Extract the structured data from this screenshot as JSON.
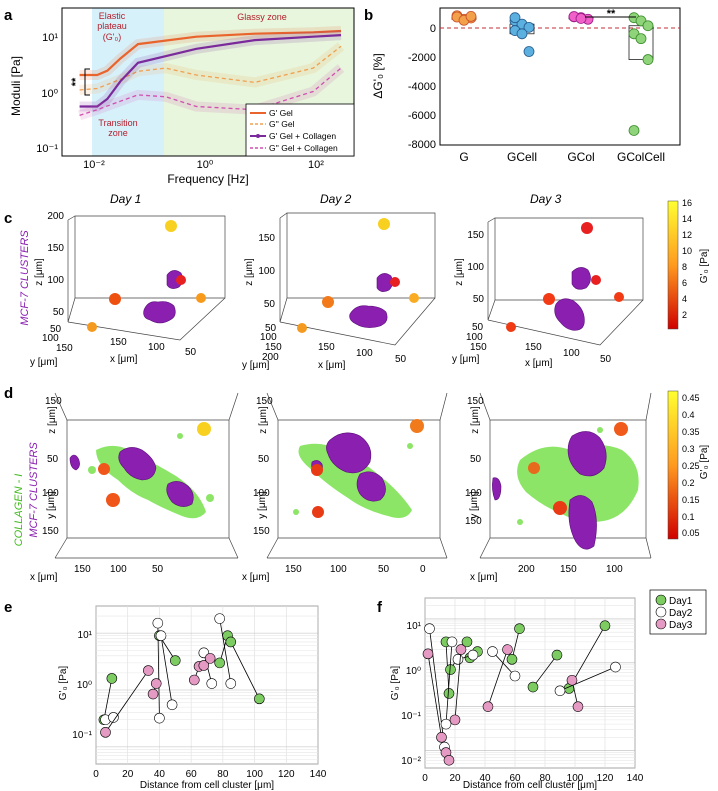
{
  "colors": {
    "g_gel": "#e8642c",
    "g_gel_col": "#7a2a9a",
    "g2_gel": "#f0a050",
    "g2_gel_col": "#d04fb0",
    "collagen": "#66dd33",
    "cluster": "#8a1fb0",
    "d1": "#7ccc62",
    "d2": "#ffffff",
    "d3": "#e49ac3"
  },
  "panel_labels": {
    "a": "a",
    "b": "b",
    "c": "c",
    "d": "d",
    "e": "e",
    "f": "f"
  },
  "panel_a": {
    "ylabel": "Moduli [Pa]",
    "xlabel": "Frequency [Hz]",
    "yticks": [
      "10¹",
      "10⁰",
      "10⁻¹"
    ],
    "xticks": [
      "10⁻²",
      "10⁰",
      "10²"
    ],
    "zone_elastic": "Elastic",
    "zone_plateau": "plateau",
    "zone_g0": "(G'₀)",
    "zone_glassy": "Glassy zone",
    "zone_transition": "Transition",
    "zone_transition2": "zone",
    "sig": "**",
    "legend": [
      "G' Gel",
      "G'' Gel",
      "G'  Gel + Collagen",
      "G'' Gel + Collagen"
    ]
  },
  "panel_b": {
    "ylabel": "ΔG'₀ [%]",
    "yticks": [
      "0",
      "-2000",
      "-4000",
      "-6000",
      "-8000"
    ],
    "categories": [
      "G",
      "GCell",
      "GCol",
      "GColCell"
    ],
    "sig": "**"
  },
  "panel_c": {
    "side_label": "MCF-7 CLUSTERS",
    "days": [
      "Day 1",
      "Day 2",
      "Day 3"
    ],
    "zlabel": "z [μm]",
    "ylabel": "y [μm]",
    "xlabel": "x [μm]",
    "cb_label": "G'₀ [Pa]",
    "cb_ticks": [
      "16",
      "14",
      "12",
      "10",
      "8",
      "6",
      "4",
      "2"
    ],
    "zt1": [
      "200",
      "150",
      "100",
      "50"
    ],
    "zt2": [
      "150",
      "100",
      "50"
    ],
    "zt3": [
      "150",
      "100",
      "50"
    ],
    "yt1": [
      "50",
      "100",
      "150"
    ],
    "xt1": [
      "150",
      "100",
      "50"
    ],
    "yt2": [
      "50",
      "100",
      "150",
      "200"
    ],
    "xt2": [
      "150",
      "100",
      "50"
    ],
    "yt3": [
      "50",
      "100",
      "150"
    ],
    "xt3": [
      "150",
      "100",
      "50"
    ]
  },
  "panel_d": {
    "side_label1": "COLLAGEN - I",
    "side_label2": "MCF-7 CLUSTERS",
    "zlabel": "z [μm]",
    "ylabel": "y [μm]",
    "xlabel": "x [μm]",
    "cb_label": "G'₀ [Pa]",
    "cb_ticks": [
      "0.45",
      "0.4",
      "0.35",
      "0.3",
      "0.25",
      "0.2",
      "0.15",
      "0.1",
      "0.05"
    ],
    "ytk": [
      "50",
      "100",
      "150"
    ],
    "xt1": [
      "150",
      "100",
      "50"
    ],
    "xt2": [
      "150",
      "100",
      "50",
      "0"
    ],
    "xt3": [
      "200",
      "150",
      "100"
    ],
    "top": [
      "150",
      "150",
      "150"
    ]
  },
  "panel_e": {
    "ylabel": "G'₀ [Pa]",
    "xlabel": "Distance from cell cluster [μm]",
    "yticks": [
      "10¹",
      "10⁰",
      "10⁻¹"
    ],
    "xticks": [
      "0",
      "20",
      "40",
      "60",
      "80",
      "100",
      "120",
      "140"
    ]
  },
  "panel_f": {
    "ylabel": "G'₀ [Pa]",
    "xlabel": "Distance from cell cluster [μm]",
    "yticks": [
      "10¹",
      "10⁰",
      "10⁻¹",
      "10⁻²"
    ],
    "xticks": [
      "0",
      "20",
      "40",
      "60",
      "80",
      "100",
      "120",
      "140"
    ],
    "legend": [
      "Day1",
      "Day2",
      "Day3"
    ]
  },
  "chart_data": [
    {
      "type": "line",
      "name": "panel_a",
      "xlabel": "Frequency [Hz]",
      "ylabel": "Moduli [Pa]",
      "xscale": "log",
      "yscale": "log",
      "xlim": [
        0.005,
        500
      ],
      "ylim": [
        0.1,
        50
      ],
      "series": [
        {
          "name": "G' Gel",
          "x": [
            0.01,
            0.02,
            0.03,
            0.05,
            0.1,
            1,
            10,
            100,
            300
          ],
          "y": [
            3,
            3,
            3.6,
            6,
            11,
            15,
            17,
            18,
            19
          ]
        },
        {
          "name": "G'' Gel",
          "x": [
            0.01,
            0.02,
            0.05,
            0.1,
            0.3,
            1,
            10,
            100,
            300
          ],
          "y": [
            1.6,
            1.7,
            2.5,
            3.5,
            4,
            3,
            2.2,
            4,
            10
          ]
        },
        {
          "name": "G'  Gel + Collagen",
          "x": [
            0.01,
            0.02,
            0.03,
            0.05,
            0.1,
            1,
            10,
            100,
            300
          ],
          "y": [
            0.8,
            0.8,
            1.1,
            2.3,
            5,
            9,
            13,
            15,
            16
          ]
        },
        {
          "name": "G'' Gel + Collagen",
          "x": [
            0.01,
            0.02,
            0.05,
            0.1,
            0.3,
            1,
            10,
            100,
            300
          ],
          "y": [
            0.55,
            0.7,
            1,
            1.3,
            1.2,
            0.8,
            0.7,
            1.5,
            4
          ]
        }
      ]
    },
    {
      "type": "box",
      "name": "panel_b",
      "categories": [
        "G",
        "GCell",
        "GCol",
        "GColCell"
      ],
      "ylim": [
        -8000,
        500
      ],
      "points": [
        [
          20,
          -200,
          -120,
          -60,
          -260,
          -20
        ],
        [
          -300,
          -500,
          -700,
          -900,
          -1100,
          -2200,
          -100
        ],
        [
          -50,
          -100,
          -200,
          -30,
          -150
        ],
        [
          -100,
          -300,
          -600,
          -1100,
          -1400,
          -2700,
          -7100
        ]
      ]
    },
    {
      "type": "scatter",
      "name": "panel_e",
      "xlabel": "Distance from cell cluster [μm]",
      "ylabel": "G'₀ [Pa]",
      "yscale": "log",
      "xlim": [
        0,
        140
      ],
      "ylim": [
        0.05,
        30
      ],
      "series": [
        {
          "name": "Day1",
          "x": [
            5,
            10,
            40,
            50,
            78,
            83,
            85,
            103
          ],
          "y": [
            0.3,
            1.6,
            9,
            3.3,
            3,
            9,
            7,
            0.7
          ]
        },
        {
          "name": "Day2",
          "x": [
            6,
            11,
            39,
            40,
            41,
            48,
            68,
            73,
            78,
            85
          ],
          "y": [
            0.3,
            0.33,
            15,
            0.32,
            9,
            0.55,
            4.5,
            1.3,
            18,
            1.3
          ]
        },
        {
          "name": "Day3",
          "x": [
            6,
            33,
            36,
            38,
            62,
            65,
            68,
            72
          ],
          "y": [
            0.18,
            2.2,
            0.85,
            1.3,
            1.5,
            2.6,
            2.7,
            3.6
          ]
        }
      ]
    },
    {
      "type": "scatter",
      "name": "panel_f",
      "xlabel": "Distance from cell cluster [μm]",
      "ylabel": "G'₀ [Pa]",
      "yscale": "log",
      "xlim": [
        0,
        140
      ],
      "ylim": [
        0.004,
        30
      ],
      "series": [
        {
          "name": "Day1",
          "x": [
            14,
            16,
            17,
            28,
            30,
            35,
            58,
            63,
            72,
            88,
            96,
            120
          ],
          "y": [
            3,
            0.2,
            0.7,
            3,
            1.3,
            1.8,
            1.2,
            6,
            0.28,
            1.5,
            0.26,
            7
          ]
        },
        {
          "name": "Day2",
          "x": [
            3,
            13,
            14,
            18,
            22,
            32,
            45,
            60,
            90,
            127
          ],
          "y": [
            6,
            0.012,
            0.04,
            3,
            1.2,
            1.5,
            1.8,
            0.5,
            0.23,
            0.8
          ]
        },
        {
          "name": "Day3",
          "x": [
            2,
            11,
            14,
            16,
            20,
            24,
            42,
            55,
            98,
            102
          ],
          "y": [
            1.6,
            0.02,
            0.009,
            0.006,
            0.05,
            2,
            0.1,
            2,
            0.4,
            0.1
          ]
        }
      ]
    }
  ]
}
